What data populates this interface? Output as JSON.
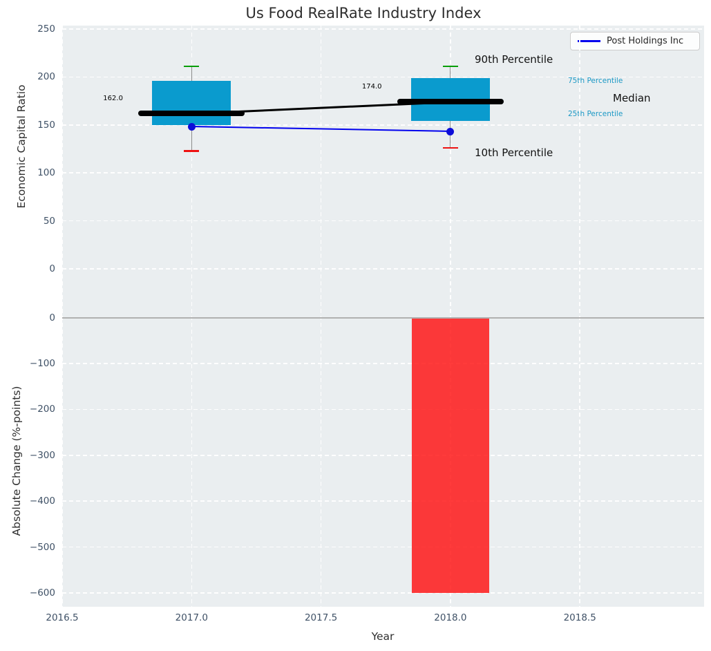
{
  "title": "Us Food RealRate Industry Index",
  "legend": {
    "label": "Post Holdings Inc"
  },
  "axes": {
    "x": {
      "label": "Year",
      "ticks": [
        {
          "v": 2016.5,
          "t": "2016.5"
        },
        {
          "v": 2017.0,
          "t": "2017.0"
        },
        {
          "v": 2017.5,
          "t": "2017.5"
        },
        {
          "v": 2018.0,
          "t": "2018.0"
        },
        {
          "v": 2018.5,
          "t": "2018.5"
        }
      ]
    },
    "y_top": {
      "label": "Economic Capital Ratio",
      "ticks": [
        {
          "v": 0,
          "t": "0"
        },
        {
          "v": 50,
          "t": "50"
        },
        {
          "v": 100,
          "t": "100"
        },
        {
          "v": 150,
          "t": "150"
        },
        {
          "v": 200,
          "t": "200"
        },
        {
          "v": 250,
          "t": "250"
        }
      ]
    },
    "y_bottom": {
      "label": "Absolute Change (%-points)",
      "ticks": [
        {
          "v": 0,
          "t": "0"
        },
        {
          "v": -100,
          "t": "−100"
        },
        {
          "v": -200,
          "t": "−200"
        },
        {
          "v": -300,
          "t": "−300"
        },
        {
          "v": -400,
          "t": "−400"
        },
        {
          "v": -500,
          "t": "−500"
        },
        {
          "v": -600,
          "t": "−600"
        }
      ]
    }
  },
  "percentile_labels": {
    "p90": "90th Percentile",
    "p75": "75th Percentile",
    "median": "Median",
    "p25": "25th Percentile",
    "p10": "10th Percentile"
  },
  "chart_data": [
    {
      "type": "box",
      "title": "Us Food RealRate Industry Index",
      "ylabel": "Economic Capital Ratio",
      "ylim": [
        0,
        250
      ],
      "xlim": [
        2016.5,
        2018.98
      ],
      "grid": true,
      "legend_position": "upper right",
      "boxes": [
        {
          "year": 2017,
          "p10": 123,
          "p25": 150,
          "median": 162,
          "p75": 196,
          "p90": 211,
          "label": "162.0"
        },
        {
          "year": 2018,
          "p10": 126,
          "p25": 154,
          "median": 174,
          "p75": 199,
          "p90": 211,
          "label": "174.0"
        }
      ],
      "series": [
        {
          "name": "Post Holdings Inc",
          "x": [
            2017,
            2018
          ],
          "values": [
            148,
            143
          ]
        }
      ]
    },
    {
      "type": "bar",
      "ylabel": "Absolute Change (%-points)",
      "xlabel": "Year",
      "ylim": [
        -630,
        0
      ],
      "xlim": [
        2016.5,
        2018.98
      ],
      "grid": true,
      "categories": [
        2018
      ],
      "values": [
        -600
      ],
      "bar_width_years": 0.3
    }
  ],
  "colors": {
    "box_fill": "#0a9bce",
    "bar_negative": "rgba(255,16,16,0.82)",
    "cap_high": "#089e08",
    "cap_low": "#ee1111",
    "whisker": "#8c8c8c",
    "median_line": "#000000",
    "series_line": "#0101ee",
    "series_marker": "#0d0dd8",
    "percentile_small_text": "#1b98c5",
    "panel_bg": "#eaeef0",
    "tick_text": "#3f5166",
    "zero_line": "#b0b0b0"
  }
}
